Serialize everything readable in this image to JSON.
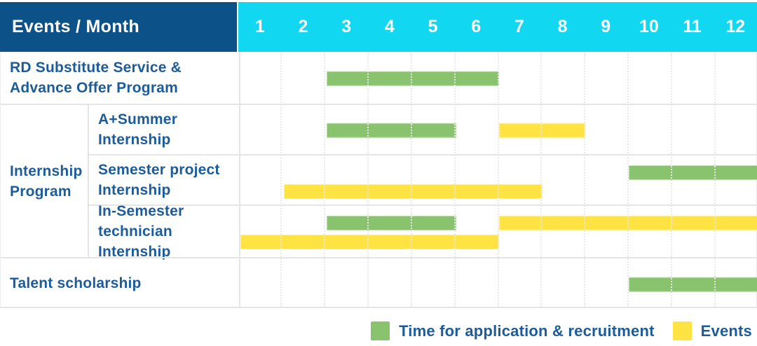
{
  "header": {
    "title": "Events / Month",
    "months": [
      "1",
      "2",
      "3",
      "4",
      "5",
      "6",
      "7",
      "8",
      "9",
      "10",
      "11",
      "12"
    ]
  },
  "rows": {
    "rd_substitute": {
      "line1": "RD Substitute Service &",
      "line2": "Advance Offer Program"
    },
    "internship_group": {
      "line1": "Internship",
      "line2": "Program"
    },
    "a_plus_summer": {
      "line1": "A+Summer",
      "line2": "Internship"
    },
    "semester_project": {
      "line1": "Semester project",
      "line2": "Internship"
    },
    "in_semester": {
      "line1": "In-Semester",
      "line2": "technician Internship"
    },
    "talent": {
      "line1": "Talent scholarship"
    }
  },
  "legend": [
    {
      "kind": "application",
      "label": "Time for application & recruitment",
      "color": "#8ac36e"
    },
    {
      "kind": "events",
      "label": "Events",
      "color": "#ffe343"
    }
  ],
  "colors": {
    "header_bg": "#0d5189",
    "months_header_bg": "#11d8f0",
    "text_blue": "#1c5c9b",
    "bar_green": "#8ac36e",
    "bar_yellow": "#ffe343",
    "grid_line": "#e5e5e5"
  },
  "chart_data": {
    "type": "gantt",
    "title": "Events / Month",
    "x_unit": "month",
    "x_range": [
      1,
      12
    ],
    "x_ticks": [
      1,
      2,
      3,
      4,
      5,
      6,
      7,
      8,
      9,
      10,
      11,
      12
    ],
    "grid": "dotted vertical month lines",
    "legend_position": "bottom-right",
    "bar_kinds": {
      "application": "Time for application & recruitment (green)",
      "events": "Events (yellow)"
    },
    "tasks": [
      {
        "row": "RD Substitute Service & Advance Offer Program",
        "group": null,
        "bars": [
          {
            "kind": "application",
            "start_month": 3,
            "end_month": 6,
            "lane": "center"
          }
        ]
      },
      {
        "row": "A+Summer Internship",
        "group": "Internship Program",
        "bars": [
          {
            "kind": "application",
            "start_month": 3,
            "end_month": 5,
            "lane": "center"
          },
          {
            "kind": "events",
            "start_month": 7,
            "end_month": 8,
            "lane": "center"
          }
        ]
      },
      {
        "row": "Semester project Internship",
        "group": "Internship Program",
        "bars": [
          {
            "kind": "application",
            "start_month": 10,
            "end_month": 12,
            "lane": "upper"
          },
          {
            "kind": "events",
            "start_month": 2,
            "end_month": 7,
            "lane": "lower"
          }
        ]
      },
      {
        "row": "In-Semester technician Internship",
        "group": "Internship Program",
        "bars": [
          {
            "kind": "application",
            "start_month": 3,
            "end_month": 5,
            "lane": "upper"
          },
          {
            "kind": "events",
            "start_month": 7,
            "end_month": 12,
            "lane": "upper"
          },
          {
            "kind": "events",
            "start_month": 1,
            "end_month": 6,
            "lane": "lower"
          }
        ]
      },
      {
        "row": "Talent scholarship",
        "group": null,
        "bars": [
          {
            "kind": "application",
            "start_month": 10,
            "end_month": 12,
            "lane": "center"
          }
        ]
      }
    ]
  }
}
